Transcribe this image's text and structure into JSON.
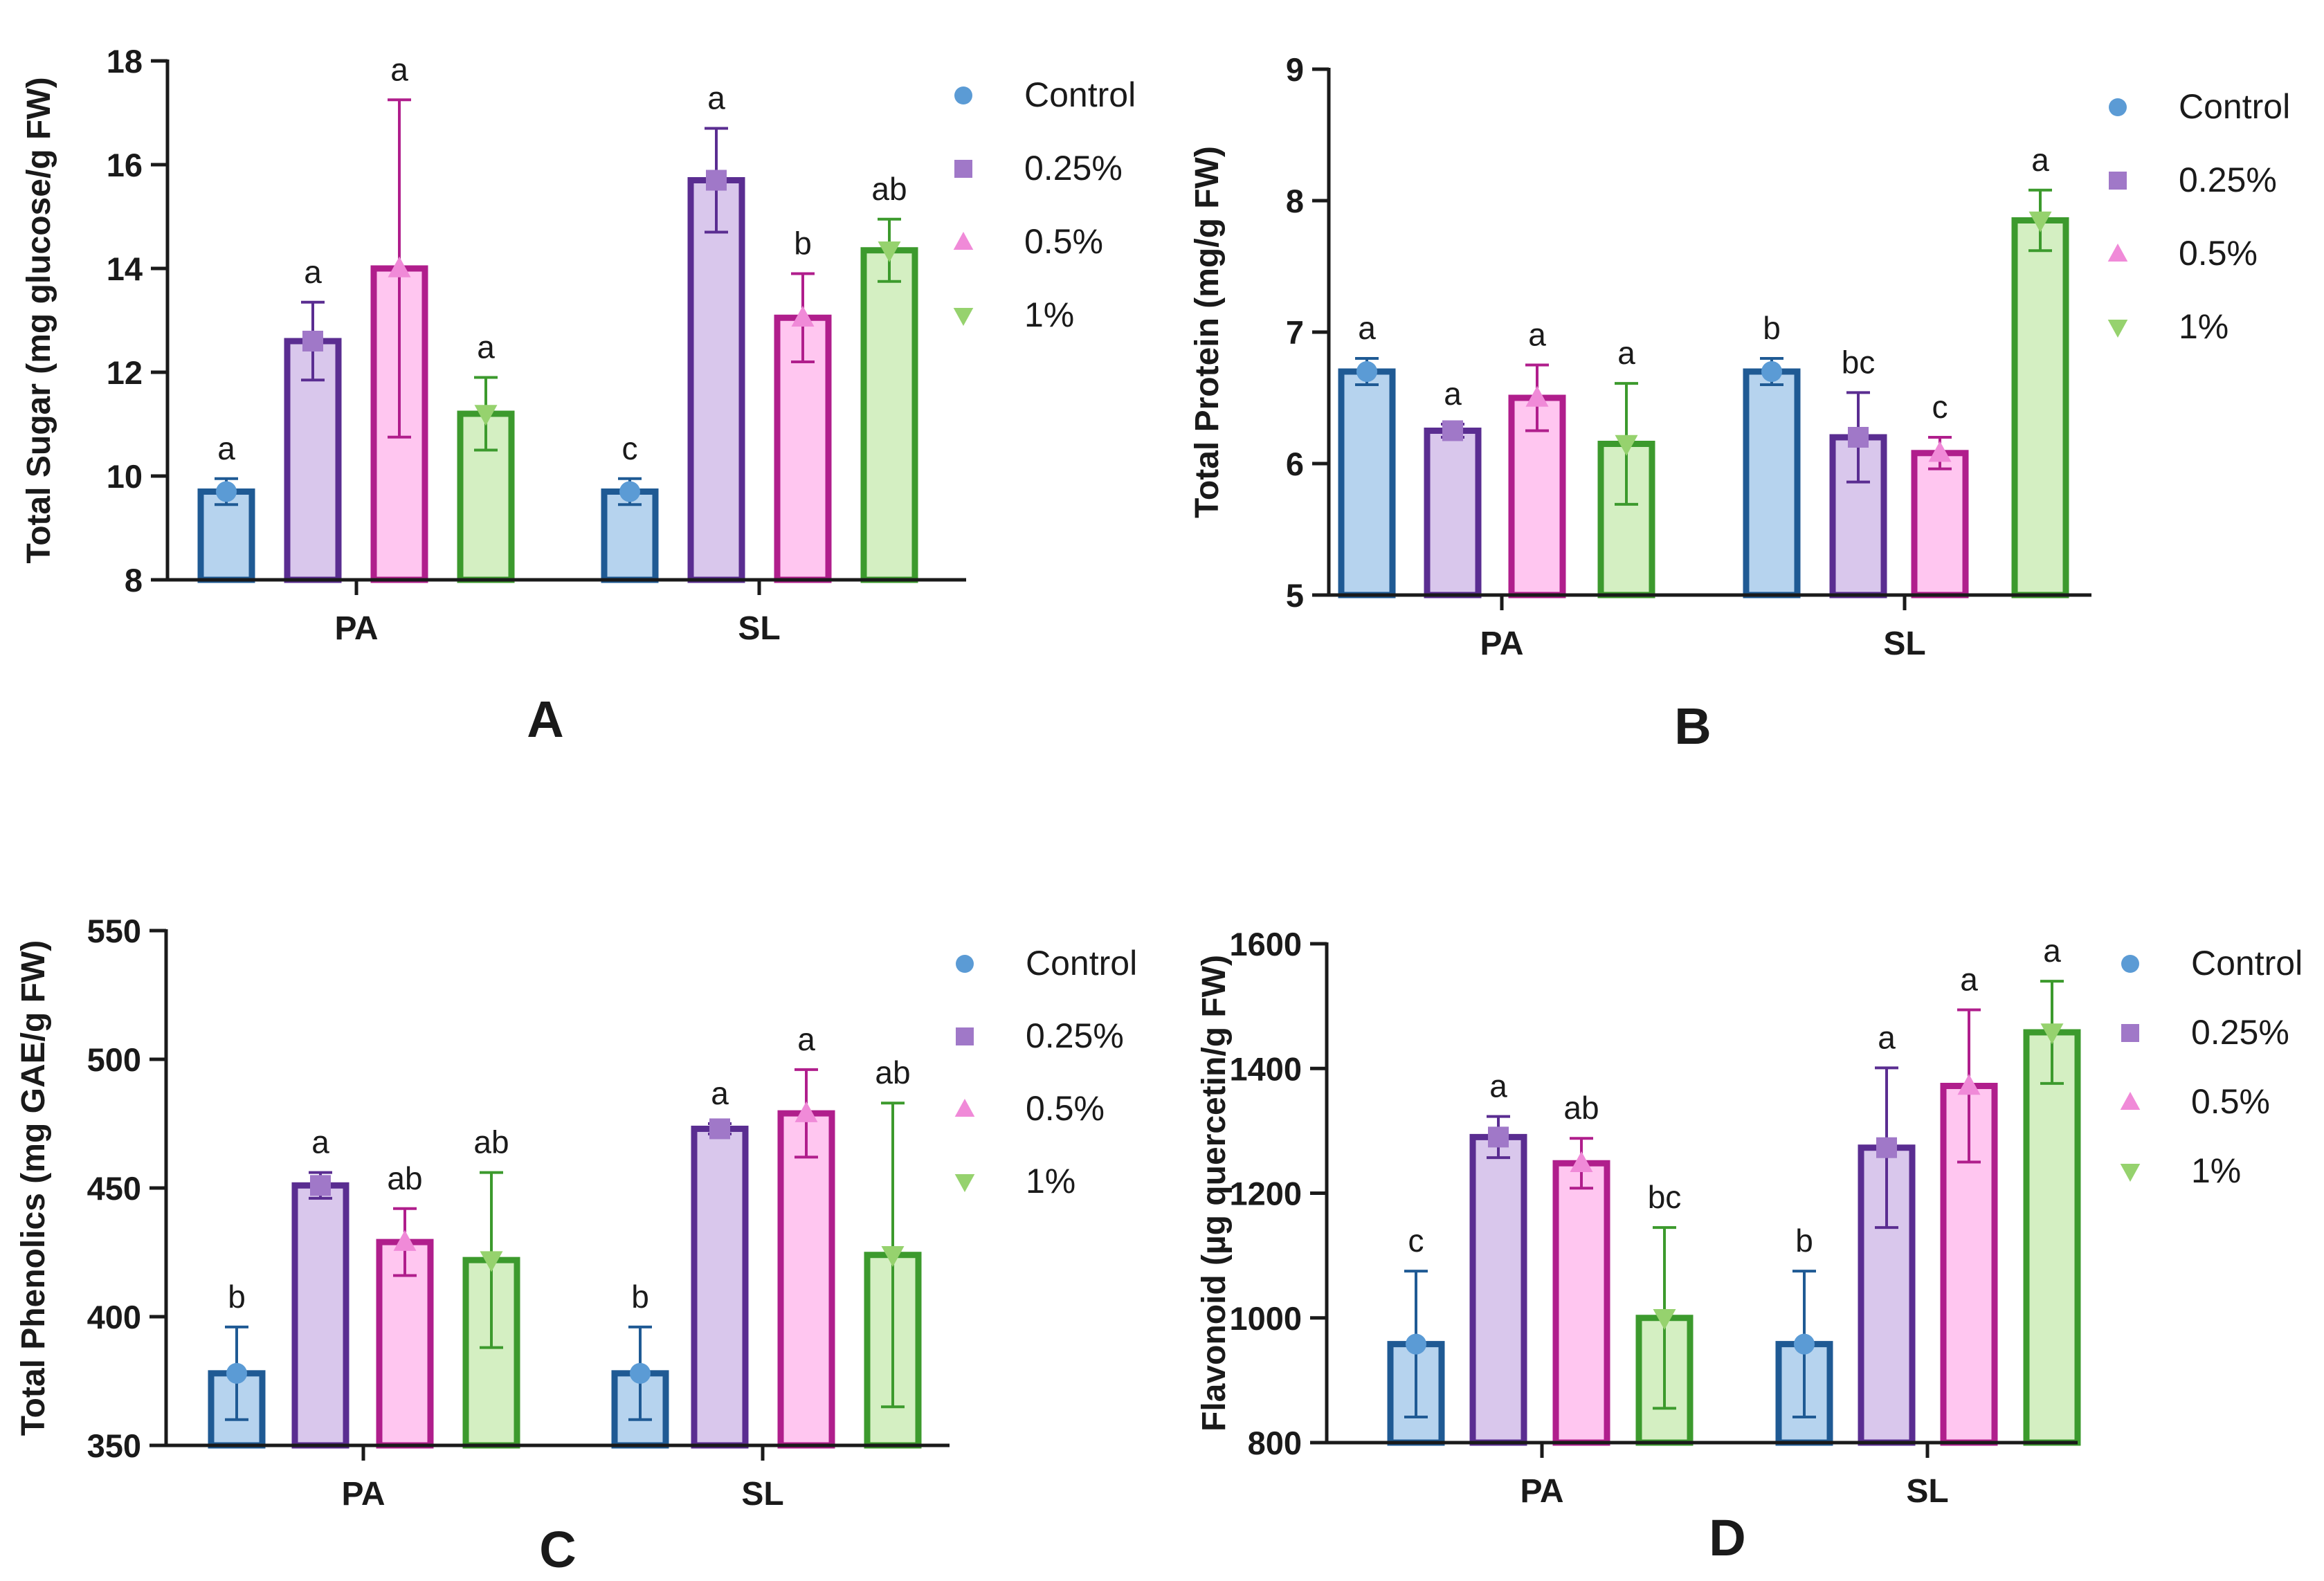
{
  "colors": {
    "axis": "#1a1a1a",
    "text": "#1a1a1a",
    "series": [
      {
        "fill": "#b6d3ee",
        "stroke": "#1f5a94",
        "marker": "#5b9bd5",
        "err": "#1f5a94"
      },
      {
        "fill": "#d9c7ec",
        "stroke": "#5a2d91",
        "marker": "#a078c8",
        "err": "#5a2d91"
      },
      {
        "fill": "#ffc6f0",
        "stroke": "#b01e8c",
        "marker": "#f08ad8",
        "err": "#b01e8c"
      },
      {
        "fill": "#d4efc2",
        "stroke": "#3c9a2d",
        "marker": "#96d26e",
        "err": "#3c9a2d"
      }
    ]
  },
  "chart_data": [
    {
      "panel": "A",
      "type": "bar",
      "ylabel": "Total Sugar (mg glucose/g FW)",
      "ylim": [
        8,
        18
      ],
      "yticks": [
        8,
        10,
        12,
        14,
        16,
        18
      ],
      "ytick_labels": [
        "8",
        "10",
        "12",
        "14",
        "16",
        "18"
      ],
      "categories": [
        "PA",
        "SL"
      ],
      "legend": [
        "Control",
        "0.25%",
        "0.5%",
        "1%"
      ],
      "series": [
        {
          "name": "Control",
          "marker": "circle",
          "values": [
            9.7,
            9.7
          ],
          "errors": [
            0.25,
            0.25
          ],
          "letters": [
            "a",
            "c"
          ]
        },
        {
          "name": "0.25%",
          "marker": "square",
          "values": [
            12.6,
            15.7
          ],
          "errors": [
            0.75,
            1.0
          ],
          "letters": [
            "a",
            "a"
          ]
        },
        {
          "name": "0.5%",
          "marker": "triangle-up",
          "values": [
            14.0,
            13.05
          ],
          "errors": [
            3.25,
            0.85
          ],
          "letters": [
            "a",
            "b"
          ]
        },
        {
          "name": "1%",
          "marker": "triangle-down",
          "values": [
            11.2,
            14.35
          ],
          "errors": [
            0.7,
            0.6
          ],
          "letters": [
            "a",
            "ab"
          ]
        }
      ]
    },
    {
      "panel": "B",
      "type": "bar",
      "ylabel": "Total Protein  (mg/g FW)",
      "ylim": [
        5,
        9
      ],
      "yticks": [
        5,
        6,
        7,
        8,
        9
      ],
      "ytick_labels": [
        "5",
        "6",
        "7",
        "8",
        "9"
      ],
      "categories": [
        "PA",
        "SL"
      ],
      "legend": [
        "Control",
        "0.25%",
        "0.5%",
        "1%"
      ],
      "series": [
        {
          "name": "Control",
          "marker": "circle",
          "values": [
            6.7,
            6.7
          ],
          "errors": [
            0.1,
            0.1
          ],
          "letters": [
            "a",
            "b"
          ]
        },
        {
          "name": "0.25%",
          "marker": "square",
          "values": [
            6.25,
            6.2
          ],
          "errors": [
            0.05,
            0.34
          ],
          "letters": [
            "a",
            "bc"
          ]
        },
        {
          "name": "0.5%",
          "marker": "triangle-up",
          "values": [
            6.5,
            6.08
          ],
          "errors": [
            0.25,
            0.12
          ],
          "letters": [
            "a",
            "c"
          ]
        },
        {
          "name": "1%",
          "marker": "triangle-down",
          "values": [
            6.15,
            7.85
          ],
          "errors": [
            0.46,
            0.23
          ],
          "letters": [
            "a",
            "a"
          ]
        }
      ]
    },
    {
      "panel": "C",
      "type": "bar",
      "ylabel": "Total Phenolics (mg GAE/g FW)",
      "ylim": [
        350,
        550
      ],
      "yticks": [
        350,
        400,
        450,
        500,
        550
      ],
      "ytick_labels": [
        "350",
        "400",
        "450",
        "500",
        "550"
      ],
      "categories": [
        "PA",
        "SL"
      ],
      "legend": [
        "Control",
        "0.25%",
        "0.5%",
        "1%"
      ],
      "series": [
        {
          "name": "Control",
          "marker": "circle",
          "values": [
            378,
            378
          ],
          "errors": [
            18,
            18
          ],
          "letters": [
            "b",
            "b"
          ]
        },
        {
          "name": "0.25%",
          "marker": "square",
          "values": [
            451,
            473
          ],
          "errors": [
            5,
            2
          ],
          "letters": [
            "a",
            "a"
          ]
        },
        {
          "name": "0.5%",
          "marker": "triangle-up",
          "values": [
            429,
            479
          ],
          "errors": [
            13,
            17
          ],
          "letters": [
            "ab",
            "a"
          ]
        },
        {
          "name": "1%",
          "marker": "triangle-down",
          "values": [
            422,
            424
          ],
          "errors": [
            34,
            59
          ],
          "letters": [
            "ab",
            "ab"
          ]
        }
      ]
    },
    {
      "panel": "D",
      "type": "bar",
      "ylabel": "Flavonoid  (µg quercetin/g FW)",
      "ylim": [
        800,
        1600
      ],
      "yticks": [
        800,
        1000,
        1200,
        1400,
        1600
      ],
      "ytick_labels": [
        "800",
        "1000",
        "1200",
        "1400",
        "1600"
      ],
      "categories": [
        "PA",
        "SL"
      ],
      "legend": [
        "Control",
        "0.25%",
        "0.5%",
        "1%"
      ],
      "series": [
        {
          "name": "Control",
          "marker": "circle",
          "values": [
            958,
            958
          ],
          "errors": [
            117,
            117
          ],
          "letters": [
            "c",
            "b"
          ]
        },
        {
          "name": "0.25%",
          "marker": "square",
          "values": [
            1290,
            1273
          ],
          "errors": [
            33,
            128
          ],
          "letters": [
            "a",
            "a"
          ]
        },
        {
          "name": "0.5%",
          "marker": "triangle-up",
          "values": [
            1248,
            1372
          ],
          "errors": [
            40,
            122
          ],
          "letters": [
            "ab",
            "a"
          ]
        },
        {
          "name": "1%",
          "marker": "triangle-down",
          "values": [
            1000,
            1458
          ],
          "errors": [
            145,
            82
          ],
          "letters": [
            "bc",
            "a"
          ]
        }
      ]
    }
  ]
}
